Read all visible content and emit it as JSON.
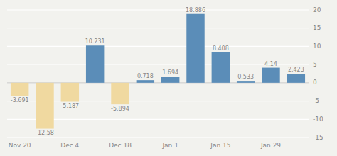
{
  "chart_data": {
    "type": "bar",
    "categories": [
      "Nov 20",
      null,
      "Dec 4",
      null,
      "Dec 18",
      null,
      "Jan 1",
      null,
      "Jan 15",
      null,
      "Jan 29",
      null
    ],
    "values": [
      -3.691,
      -12.58,
      -5.187,
      10.231,
      -5.894,
      0.718,
      1.694,
      18.886,
      8.408,
      0.533,
      4.14,
      2.423
    ],
    "colors": [
      "#f0d9a0",
      "#f0d9a0",
      "#f0d9a0",
      "#5b8db8",
      "#f0d9a0",
      "#5b8db8",
      "#5b8db8",
      "#5b8db8",
      "#5b8db8",
      "#5b8db8",
      "#5b8db8",
      "#5b8db8"
    ],
    "ylim": [
      -15,
      20
    ],
    "yticks": [
      -15,
      -10,
      -5,
      0,
      5,
      10,
      15,
      20
    ],
    "grid": true,
    "data_labels": true
  }
}
